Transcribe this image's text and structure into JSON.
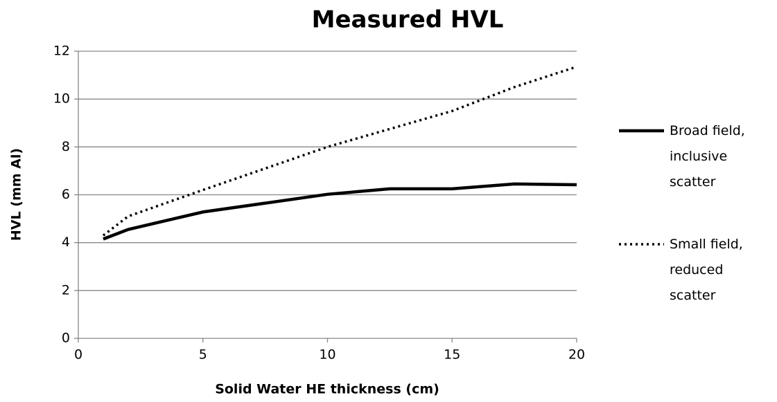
{
  "chart_data": {
    "type": "line",
    "title": "Measured HVL",
    "x_label": "Solid Water HE thickness (cm)",
    "y_label": "HVL (mm Al)",
    "series": [
      {
        "name": "Broad field, inclusive scatter",
        "color": "#000000",
        "style": "solid",
        "x": [
          1,
          2,
          5,
          10,
          12.5,
          15,
          17.5,
          20
        ],
        "values": [
          4.15,
          4.55,
          5.28,
          6.02,
          6.25,
          6.25,
          6.45,
          6.42
        ]
      },
      {
        "name": "Small field, reduced scatter",
        "color": "#000000",
        "style": "dotted",
        "x": [
          1,
          2,
          5,
          10,
          12.5,
          15,
          17.5,
          20
        ],
        "values": [
          4.3,
          5.1,
          6.2,
          8.0,
          8.75,
          9.5,
          10.5,
          11.35
        ]
      }
    ],
    "xlim": [
      0,
      20
    ],
    "xticks": [
      0,
      5,
      10,
      15,
      20
    ],
    "ylim": [
      0,
      12
    ],
    "yticks": [
      0,
      2,
      4,
      6,
      8,
      10,
      12
    ],
    "grid": true,
    "legend": "right"
  }
}
